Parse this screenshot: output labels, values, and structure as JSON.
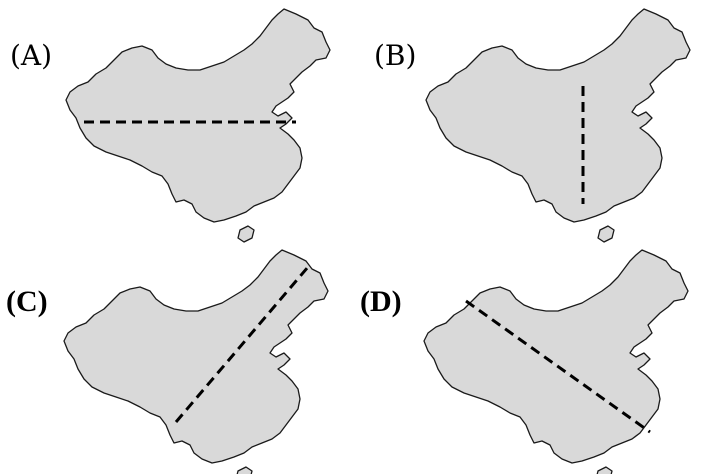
{
  "panels": [
    {
      "id": "A",
      "label": "(A)",
      "style": "light"
    },
    {
      "id": "B",
      "label": "(B)",
      "style": "light"
    },
    {
      "id": "C",
      "label": "(C)",
      "style": "bold"
    },
    {
      "id": "D",
      "label": "(D)",
      "style": "bold"
    }
  ],
  "colors": {
    "land": "#d9d9d9",
    "outline": "#1a1a1a",
    "divider": "#000000"
  }
}
